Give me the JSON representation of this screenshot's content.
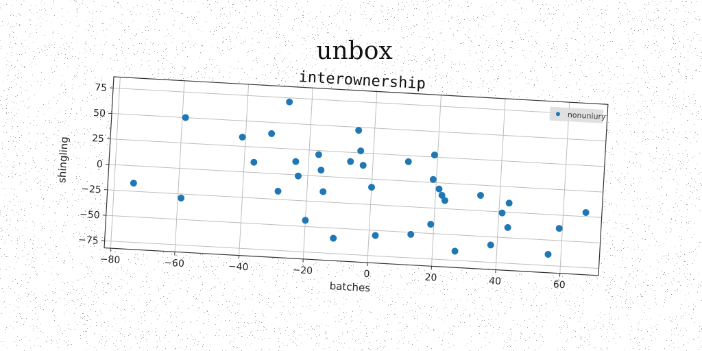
{
  "figure": {
    "suptitle": "unbox"
  },
  "chart_data": {
    "type": "scatter",
    "title": "interownership",
    "xlabel": "batches",
    "ylabel": "shingling",
    "xlim": [
      -82,
      72
    ],
    "ylim": [
      -82,
      86
    ],
    "xticks": [
      -80,
      -60,
      -40,
      -20,
      0,
      20,
      40,
      60
    ],
    "yticks": [
      -75,
      -50,
      -25,
      0,
      25,
      50,
      75
    ],
    "grid": true,
    "legend_position": "top-right",
    "series": [
      {
        "name": "nonuniury",
        "color": "#1f77b4",
        "points": [
          [
            -74,
            -17
          ],
          [
            -59,
            50
          ],
          [
            -59,
            -29
          ],
          [
            -41,
            34
          ],
          [
            -37,
            10
          ],
          [
            -32,
            39
          ],
          [
            -29,
            -17
          ],
          [
            -27,
            71
          ],
          [
            -24,
            13
          ],
          [
            -23,
            -1
          ],
          [
            -20,
            -44
          ],
          [
            -17,
            21
          ],
          [
            -16,
            6
          ],
          [
            -15,
            -15
          ],
          [
            -11,
            -60
          ],
          [
            -7,
            16
          ],
          [
            -5,
            47
          ],
          [
            -4,
            27
          ],
          [
            -3,
            13
          ],
          [
            0,
            -8
          ],
          [
            2,
            -55
          ],
          [
            11,
            19
          ],
          [
            11,
            -87
          ],
          [
            13,
            -52
          ],
          [
            19,
            27
          ],
          [
            19,
            3
          ],
          [
            19,
            -41
          ],
          [
            21,
            -6
          ],
          [
            22,
            -12
          ],
          [
            23,
            -17
          ],
          [
            27,
            -66
          ],
          [
            34,
            -10
          ],
          [
            38,
            -58
          ],
          [
            41,
            -26
          ],
          [
            43,
            -40
          ],
          [
            43,
            -16
          ],
          [
            56,
            -64
          ],
          [
            59,
            -38
          ],
          [
            67,
            -21
          ]
        ]
      }
    ]
  }
}
